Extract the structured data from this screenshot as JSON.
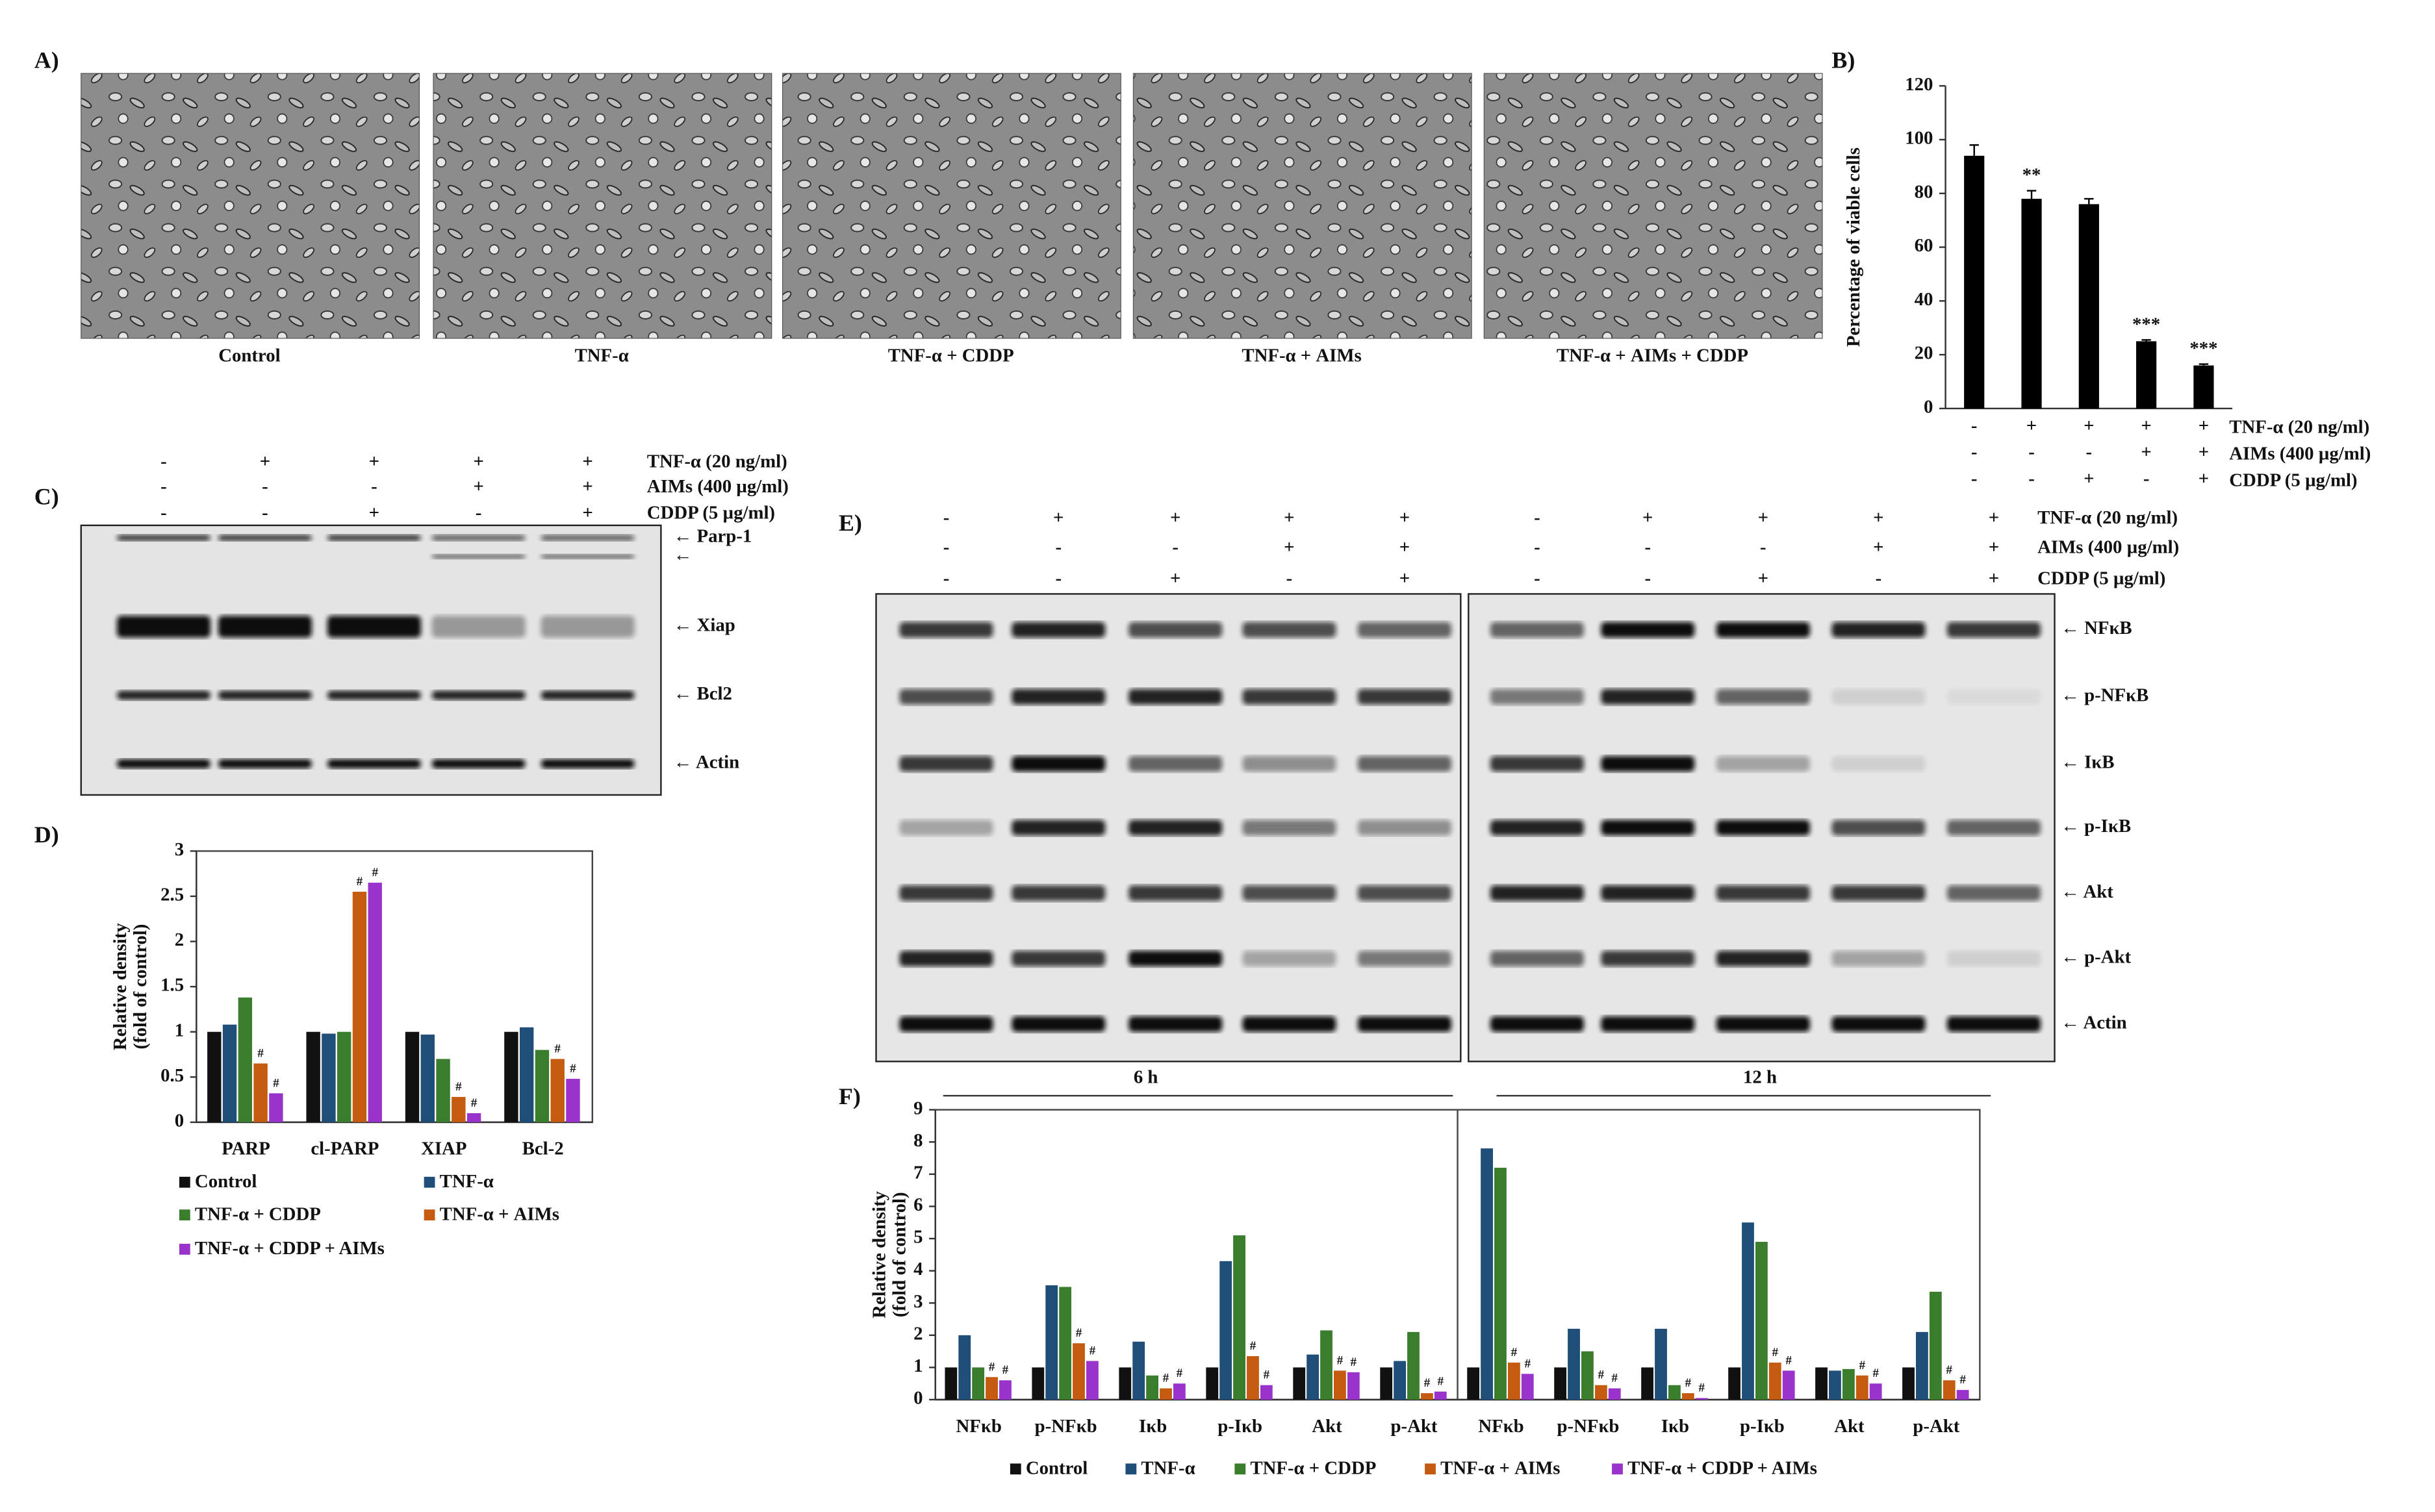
{
  "micrographs": {
    "panel_label": "A)",
    "captions": [
      "Control",
      "TNF-α",
      "TNF-α + CDDP",
      "TNF-α + AIMs",
      "TNF-α + AIMs + CDDP"
    ]
  },
  "blots": [
    {
      "panel_label": "C)",
      "treatments": [
        {
          "label": "TNF-α  (20 ng/ml)",
          "signs": [
            "-",
            "+",
            "+",
            "+",
            "+"
          ]
        },
        {
          "label": "AIMs (400 µg/ml)",
          "signs": [
            "-",
            "-",
            "-",
            "+",
            "+"
          ]
        },
        {
          "label": "CDDP (5 µg/ml)",
          "signs": [
            "-",
            "-",
            "+",
            "-",
            "+"
          ]
        }
      ],
      "bands": [
        "← Parp-1",
        "←",
        "← Xiap",
        "← Bcl2",
        "← Actin"
      ]
    },
    {
      "panel_label": "E)",
      "treatments": [
        {
          "label": "TNF-α  (20 ng/ml)",
          "signs": [
            "-",
            "+",
            "+",
            "+",
            "+",
            "-",
            "+",
            "+",
            "+",
            "+"
          ]
        },
        {
          "label": "AIMs (400 µg/ml)",
          "signs": [
            "-",
            "-",
            "-",
            "+",
            "+",
            "-",
            "-",
            "-",
            "+",
            "+"
          ]
        },
        {
          "label": "CDDP (5 µg/ml)",
          "signs": [
            "-",
            "-",
            "+",
            "-",
            "+",
            "-",
            "-",
            "+",
            "-",
            "+"
          ]
        }
      ],
      "bands": [
        "← NFκB",
        "← p-NFκB",
        "← IκB",
        "← p-IκB",
        "← Akt",
        "← p-Akt",
        "← Actin"
      ],
      "time_labels": [
        "6 h",
        "12 h"
      ]
    }
  ],
  "chart_data": [
    {
      "type": "bar",
      "panel_label": "B)",
      "y_label": [
        "Percentage of viable cells"
      ],
      "categories": [
        null,
        null,
        null,
        null,
        null
      ],
      "values": [
        94,
        78,
        76,
        25,
        16
      ],
      "errors": [
        4,
        3,
        2,
        0.5,
        0.5
      ],
      "significance": [
        null,
        "**",
        null,
        "***",
        "***"
      ],
      "color": "#000000",
      "ylim": [
        0,
        120
      ],
      "yticks": [
        0,
        20,
        40,
        60,
        80,
        100,
        120
      ],
      "treatments": [
        {
          "label": "TNF-α  (20 ng/ml)",
          "signs": [
            "-",
            "+",
            "+",
            "+",
            "+"
          ]
        },
        {
          "label": "AIMs (400 µg/ml)",
          "signs": [
            "-",
            "-",
            "-",
            "+",
            "+"
          ]
        },
        {
          "label": "CDDP (5 µg/ml)",
          "signs": [
            "-",
            "-",
            "+",
            "-",
            "+"
          ]
        }
      ]
    },
    {
      "type": "bar",
      "panel_label": "D)",
      "y_label": [
        "Relative density",
        "(fold of control)"
      ],
      "categories": [
        "PARP",
        "cl-PARP",
        "XIAP",
        "Bcl-2"
      ],
      "series": [
        {
          "name": "Control",
          "color": "#111111",
          "values": [
            1,
            1,
            1,
            1
          ],
          "marks": [
            null,
            null,
            null,
            null
          ]
        },
        {
          "name": "TNF-α",
          "color": "#1f4e79",
          "values": [
            1.08,
            0.98,
            0.97,
            1.05
          ],
          "marks": [
            null,
            null,
            null,
            null
          ]
        },
        {
          "name": "TNF-α + CDDP",
          "color": "#3a7d2c",
          "values": [
            1.38,
            1.0,
            0.7,
            0.8
          ],
          "marks": [
            null,
            null,
            null,
            null
          ]
        },
        {
          "name": "TNF-α + AIMs",
          "color": "#c55a11",
          "values": [
            0.65,
            2.55,
            0.28,
            0.7
          ],
          "marks": [
            "#",
            "#",
            "#",
            "#"
          ]
        },
        {
          "name": "TNF-α + CDDP + AIMs",
          "color": "#9933cc",
          "values": [
            0.32,
            2.65,
            0.1,
            0.48
          ],
          "marks": [
            "#",
            "#",
            "#",
            "#"
          ]
        }
      ],
      "ylim": [
        0,
        3
      ],
      "yticks": [
        0,
        0.5,
        1,
        1.5,
        2,
        2.5,
        3
      ]
    },
    {
      "type": "bar",
      "panel_label": "F)",
      "y_label": [
        "Relative density",
        "(fold of control)"
      ],
      "categories": [
        "NFκb",
        "p-NFκb",
        "Iκb",
        "p-Iκb",
        "Akt",
        "p-Akt",
        "NFκb",
        "p-NFκb",
        "Iκb",
        "p-Iκb",
        "Akt",
        "p-Akt"
      ],
      "series": [
        {
          "name": "Control",
          "color": "#111111",
          "values": [
            1,
            1,
            1,
            1,
            1,
            1,
            1,
            1,
            1,
            1,
            1,
            1
          ],
          "marks": [
            null,
            null,
            null,
            null,
            null,
            null,
            null,
            null,
            null,
            null,
            null,
            null
          ]
        },
        {
          "name": "TNF-α",
          "color": "#1f4e79",
          "values": [
            2.0,
            3.55,
            1.8,
            4.3,
            1.4,
            1.2,
            7.8,
            2.2,
            2.2,
            5.5,
            0.9,
            2.1
          ],
          "marks": [
            null,
            null,
            null,
            null,
            null,
            null,
            null,
            null,
            null,
            null,
            null,
            null
          ]
        },
        {
          "name": "TNF-α + CDDP",
          "color": "#3a7d2c",
          "values": [
            1.0,
            3.5,
            0.75,
            5.1,
            2.15,
            2.1,
            7.2,
            1.5,
            0.45,
            4.9,
            0.95,
            3.35
          ],
          "marks": [
            null,
            null,
            null,
            null,
            null,
            null,
            null,
            null,
            null,
            null,
            null,
            null
          ]
        },
        {
          "name": "TNF-α + AIMs",
          "color": "#c55a11",
          "values": [
            0.7,
            1.75,
            0.35,
            1.35,
            0.9,
            0.2,
            1.15,
            0.45,
            0.2,
            1.15,
            0.75,
            0.6
          ],
          "marks": [
            "#",
            "#",
            "#",
            "#",
            "#",
            "#",
            "#",
            "#",
            "#",
            "#",
            "#",
            "#"
          ]
        },
        {
          "name": "TNF-α + CDDP + AIMs",
          "color": "#9933cc",
          "values": [
            0.6,
            1.2,
            0.5,
            0.45,
            0.85,
            0.25,
            0.8,
            0.35,
            0.05,
            0.9,
            0.5,
            0.3
          ],
          "marks": [
            "#",
            "#",
            "#",
            "#",
            "#",
            "#",
            "#",
            "#",
            "#",
            "#",
            "#",
            "#"
          ]
        }
      ],
      "ylim": [
        0,
        9
      ],
      "yticks": [
        0,
        1,
        2,
        3,
        4,
        5,
        6,
        7,
        8,
        9
      ]
    }
  ]
}
